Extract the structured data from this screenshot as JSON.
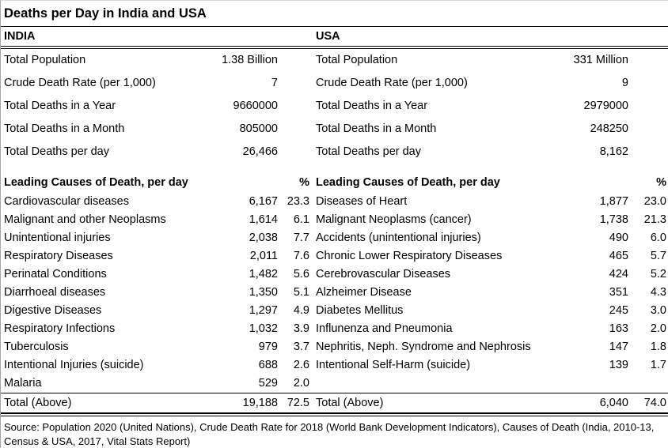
{
  "title": "Deaths per Day in India and USA",
  "pct_header": "%",
  "india": {
    "header": "INDIA",
    "summary": [
      {
        "label": "Total Population",
        "value": "1.38 Billion"
      },
      {
        "label": "Crude Death Rate (per 1,000)",
        "value": "7"
      },
      {
        "label": "Total Deaths in a Year",
        "value": "9660000"
      },
      {
        "label": "Total Deaths in a Month",
        "value": "805000"
      },
      {
        "label": "Total Deaths per day",
        "value": "26,466"
      }
    ],
    "causes_header": "Leading Causes of Death, per day",
    "causes": [
      {
        "label": "Cardiovascular diseases",
        "value": "6,167",
        "pct": "23.3"
      },
      {
        "label": "Malignant and other Neoplasms",
        "value": "1,614",
        "pct": "6.1"
      },
      {
        "label": "Unintentional injuries",
        "value": "2,038",
        "pct": "7.7"
      },
      {
        "label": "Respiratory Diseases",
        "value": "2,011",
        "pct": "7.6"
      },
      {
        "label": "Perinatal Conditions",
        "value": "1,482",
        "pct": "5.6"
      },
      {
        "label": "Diarrhoeal diseases",
        "value": "1,350",
        "pct": "5.1"
      },
      {
        "label": "Digestive Diseases",
        "value": "1,297",
        "pct": "4.9"
      },
      {
        "label": "Respiratory Infections",
        "value": "1,032",
        "pct": "3.9"
      },
      {
        "label": "Tuberculosis",
        "value": "979",
        "pct": "3.7"
      },
      {
        "label": "Intentional Injuries (suicide)",
        "value": "688",
        "pct": "2.6"
      },
      {
        "label": "Malaria",
        "value": "529",
        "pct": "2.0"
      }
    ],
    "total": {
      "label": "Total (Above)",
      "value": "19,188",
      "pct": "72.5"
    }
  },
  "usa": {
    "header": "USA",
    "summary": [
      {
        "label": "Total Population",
        "value": "331 Million"
      },
      {
        "label": "Crude Death Rate (per 1,000)",
        "value": "9"
      },
      {
        "label": "Total Deaths in a Year",
        "value": "2979000"
      },
      {
        "label": "Total Deaths in a Month",
        "value": "248250"
      },
      {
        "label": "Total Deaths per day",
        "value": "8,162"
      }
    ],
    "causes_header": "Leading Causes of Death, per day",
    "causes": [
      {
        "label": "Diseases of Heart",
        "value": "1,877",
        "pct": "23.0"
      },
      {
        "label": "Malignant Neoplasms (cancer)",
        "value": "1,738",
        "pct": "21.3"
      },
      {
        "label": "Accidents (unintentional injuries)",
        "value": "490",
        "pct": "6.0"
      },
      {
        "label": "Chronic Lower Respiratory Diseases",
        "value": "465",
        "pct": "5.7"
      },
      {
        "label": "Cerebrovascular Diseases",
        "value": "424",
        "pct": "5.2"
      },
      {
        "label": "Alzheimer Disease",
        "value": "351",
        "pct": "4.3"
      },
      {
        "label": "Diabetes Mellitus",
        "value": "245",
        "pct": "3.0"
      },
      {
        "label": "Influnenza and Pneumonia",
        "value": "163",
        "pct": "2.0"
      },
      {
        "label": "Nephritis, Neph. Syndrome and Nephrosis",
        "value": "147",
        "pct": "1.8"
      },
      {
        "label": "Intentional Self-Harm (suicide)",
        "value": "139",
        "pct": "1.7"
      }
    ],
    "total": {
      "label": "Total (Above)",
      "value": "6,040",
      "pct": "74.0"
    }
  },
  "source": "Source: Population 2020 (United Nations), Crude Death Rate for 2018 (World Bank Development Indicators), Causes of Death (India, 2010-13, Census & USA, 2017, Vital Stats Report)"
}
